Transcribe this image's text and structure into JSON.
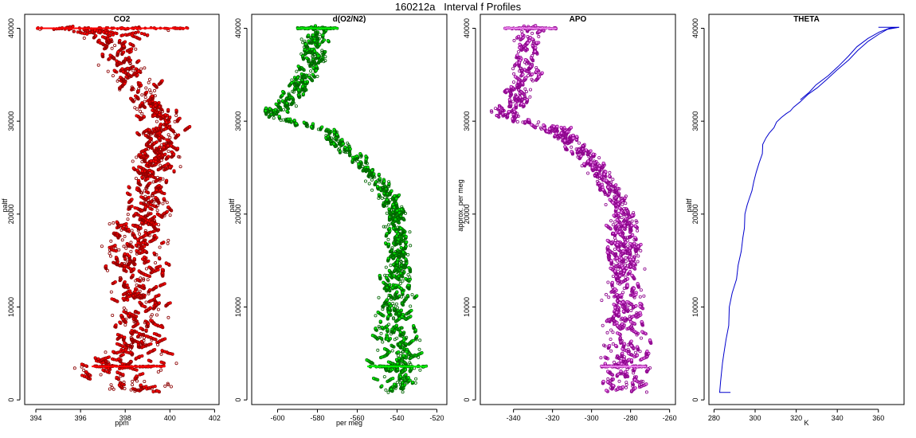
{
  "figure": {
    "title": "160212a   Interval f Profiles"
  },
  "chart_data": [
    {
      "type": "scatter",
      "title": "CO2",
      "xlabel": "ppm",
      "ylabel": "paltf",
      "xlim": [
        393.5,
        402.2
      ],
      "ylim": [
        -500,
        41500
      ],
      "xticks": [
        394,
        396,
        398,
        400,
        402
      ],
      "yticks": [
        0,
        10000,
        20000,
        30000,
        40000
      ],
      "marker_color": "#ff0000",
      "outline_color": "#8b0000",
      "profile": [
        {
          "y": 800,
          "x": 398.4,
          "spread": 1.2
        },
        {
          "y": 3600,
          "x": 397.9,
          "spread": 1.6
        },
        {
          "y": 6000,
          "x": 398.6,
          "spread": 1.1
        },
        {
          "y": 10000,
          "x": 398.8,
          "spread": 1.0
        },
        {
          "y": 14000,
          "x": 398.5,
          "spread": 1.0
        },
        {
          "y": 18000,
          "x": 398.5,
          "spread": 1.1
        },
        {
          "y": 22000,
          "x": 399.0,
          "spread": 0.9
        },
        {
          "y": 26000,
          "x": 399.5,
          "spread": 0.8
        },
        {
          "y": 30000,
          "x": 399.6,
          "spread": 0.8
        },
        {
          "y": 33000,
          "x": 398.8,
          "spread": 0.8
        },
        {
          "y": 36000,
          "x": 397.9,
          "spread": 0.8
        },
        {
          "y": 38500,
          "x": 397.5,
          "spread": 0.8
        },
        {
          "y": 40000,
          "x": 397.2,
          "spread": 3.0
        }
      ],
      "hlines": [
        {
          "y": 40000,
          "x1": 394.0,
          "x2": 400.8
        },
        {
          "y": 3600,
          "x1": 396.5,
          "x2": 399.8
        }
      ]
    },
    {
      "type": "scatter",
      "title": "d(O2/N2)",
      "xlabel": "per meg",
      "ylabel": "paltf",
      "xlim": [
        -613,
        -515
      ],
      "ylim": [
        -500,
        41500
      ],
      "xticks": [
        -600,
        -580,
        -560,
        -540,
        -520
      ],
      "yticks": [
        0,
        10000,
        20000,
        30000,
        40000
      ],
      "marker_color": "#00ee00",
      "outline_color": "#006400",
      "profile": [
        {
          "y": 800,
          "x": -541,
          "spread": 9
        },
        {
          "y": 3600,
          "x": -539,
          "spread": 10
        },
        {
          "y": 10000,
          "x": -541,
          "spread": 7
        },
        {
          "y": 15000,
          "x": -539,
          "spread": 6
        },
        {
          "y": 20000,
          "x": -540,
          "spread": 5
        },
        {
          "y": 23000,
          "x": -548,
          "spread": 4
        },
        {
          "y": 26000,
          "x": -560,
          "spread": 4
        },
        {
          "y": 29000,
          "x": -576,
          "spread": 4
        },
        {
          "y": 30500,
          "x": -603,
          "spread": 6
        },
        {
          "y": 32000,
          "x": -595,
          "spread": 5
        },
        {
          "y": 35000,
          "x": -585,
          "spread": 5
        },
        {
          "y": 38000,
          "x": -582,
          "spread": 5
        },
        {
          "y": 40000,
          "x": -580,
          "spread": 6
        }
      ],
      "hlines": [
        {
          "y": 40000,
          "x1": -590,
          "x2": -570
        },
        {
          "y": 3600,
          "x1": -555,
          "x2": -525
        }
      ]
    },
    {
      "type": "scatter",
      "title": "APO",
      "xlabel": "",
      "ylabel": "approx. per meg",
      "xlim": [
        -357,
        -257
      ],
      "ylim": [
        -500,
        41500
      ],
      "xticks": [
        -340,
        -320,
        -300,
        -280,
        -260
      ],
      "yticks": [
        0,
        10000,
        20000,
        30000,
        40000
      ],
      "marker_color": "#ee82ee",
      "outline_color": "#8b008b",
      "profile": [
        {
          "y": 800,
          "x": -283,
          "spread": 10
        },
        {
          "y": 3600,
          "x": -282,
          "spread": 10
        },
        {
          "y": 10000,
          "x": -284,
          "spread": 8
        },
        {
          "y": 15000,
          "x": -283,
          "spread": 7
        },
        {
          "y": 20000,
          "x": -284,
          "spread": 6
        },
        {
          "y": 23000,
          "x": -292,
          "spread": 5
        },
        {
          "y": 26000,
          "x": -302,
          "spread": 5
        },
        {
          "y": 29000,
          "x": -318,
          "spread": 5
        },
        {
          "y": 30500,
          "x": -345,
          "spread": 6
        },
        {
          "y": 32000,
          "x": -340,
          "spread": 6
        },
        {
          "y": 35000,
          "x": -334,
          "spread": 6
        },
        {
          "y": 38000,
          "x": -332,
          "spread": 6
        },
        {
          "y": 40000,
          "x": -333,
          "spread": 7
        }
      ],
      "hlines": [
        {
          "y": 40000,
          "x1": -345,
          "x2": -318
        },
        {
          "y": 3600,
          "x1": -295,
          "x2": -272
        }
      ]
    },
    {
      "type": "line",
      "title": "THETA",
      "xlabel": "K",
      "ylabel": "paltf",
      "xlim": [
        277.5,
        372.5
      ],
      "ylim": [
        -500,
        41500
      ],
      "xticks": [
        280,
        300,
        320,
        340,
        360
      ],
      "yticks": [
        0,
        10000,
        20000,
        30000,
        40000
      ],
      "line_color": "#0000cd",
      "series": [
        {
          "x": [
            288,
            283,
            283.5,
            284,
            285,
            286,
            287,
            288,
            289,
            290.5,
            292,
            293,
            294,
            295,
            295.5,
            296,
            297,
            298,
            299,
            300,
            302,
            303,
            304,
            305,
            307,
            309,
            311,
            313,
            315,
            317,
            319,
            322,
            326,
            330,
            335,
            340,
            345,
            350,
            355,
            360,
            365,
            370
          ],
          "y": [
            800,
            800,
            2000,
            4000,
            5000,
            6500,
            8000,
            10000,
            11500,
            13000,
            14500,
            16000,
            17500,
            18500,
            20000,
            21000,
            21700,
            22500,
            23500,
            24500,
            25500,
            26500,
            27500,
            28200,
            28700,
            29300,
            29900,
            30400,
            30800,
            31100,
            31500,
            32100,
            32900,
            33600,
            34500,
            35500,
            36600,
            37600,
            38600,
            39400,
            39900,
            40100
          ]
        },
        {
          "x": [
            322,
            326,
            330,
            335,
            340,
            345,
            350,
            355,
            360,
            365,
            370,
            360
          ],
          "y": [
            32300,
            33100,
            33900,
            34900,
            35900,
            37000,
            38000,
            38900,
            39600,
            40000,
            40100,
            40100
          ]
        }
      ]
    }
  ]
}
